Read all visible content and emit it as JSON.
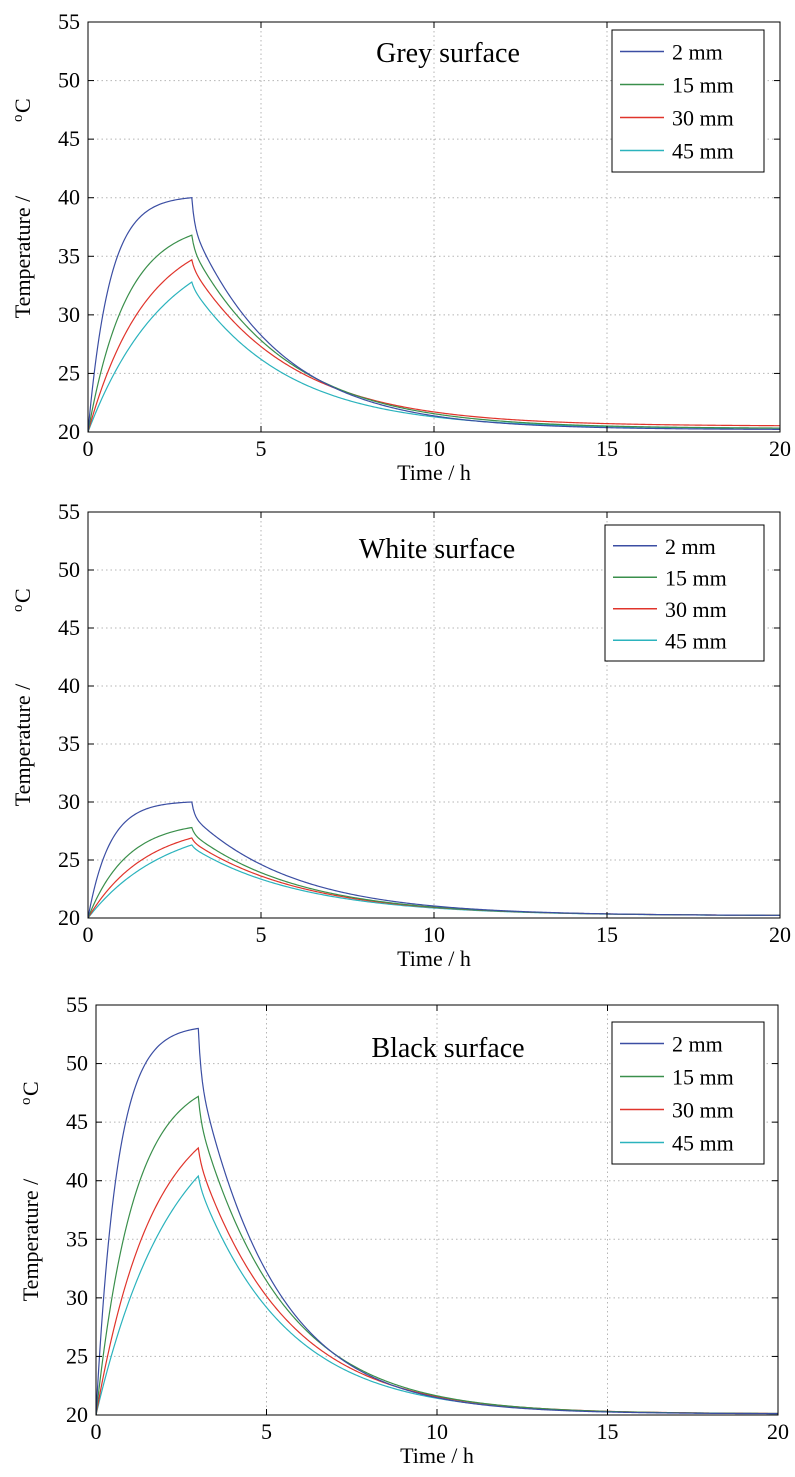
{
  "chart_data": [
    {
      "type": "line",
      "title": "Grey surface",
      "xlabel": "Time / h",
      "ylabel": "Temperature /",
      "ylabel_unit": "oC",
      "xlim": [
        0,
        20
      ],
      "ylim": [
        20,
        55
      ],
      "xticks": [
        0,
        5,
        10,
        15,
        20
      ],
      "yticks": [
        20,
        25,
        30,
        35,
        40,
        45,
        50,
        55
      ],
      "grid": true,
      "legend": "top-right",
      "series": [
        {
          "name": "2 mm",
          "color": "#3b4ea3",
          "peak": 40.0,
          "final": 20.2,
          "rise_k": 1.6,
          "decay_tau": 2.6
        },
        {
          "name": "15 mm",
          "color": "#3a8f4b",
          "peak": 36.8,
          "final": 20.3,
          "rise_k": 0.9,
          "decay_tau": 2.8
        },
        {
          "name": "30 mm",
          "color": "#e0342b",
          "peak": 34.7,
          "final": 20.5,
          "rise_k": 0.6,
          "decay_tau": 2.9
        },
        {
          "name": "45 mm",
          "color": "#2bb3bd",
          "peak": 32.8,
          "final": 20.3,
          "rise_k": 0.45,
          "decay_tau": 2.8
        }
      ]
    },
    {
      "type": "line",
      "title": "White surface",
      "xlabel": "Time / h",
      "ylabel": "Temperature /",
      "ylabel_unit": "oC",
      "xlim": [
        0,
        20
      ],
      "ylim": [
        20,
        55
      ],
      "xticks": [
        0,
        5,
        10,
        15,
        20
      ],
      "yticks": [
        20,
        25,
        30,
        35,
        40,
        45,
        50,
        55
      ],
      "grid": true,
      "legend": "top-right",
      "series": [
        {
          "name": "2 mm",
          "color": "#3b4ea3",
          "peak": 30.0,
          "final": 20.2,
          "rise_k": 1.6,
          "decay_tau": 3.0
        },
        {
          "name": "15 mm",
          "color": "#3a8f4b",
          "peak": 27.8,
          "final": 20.2,
          "rise_k": 0.9,
          "decay_tau": 3.1
        },
        {
          "name": "30 mm",
          "color": "#e0342b",
          "peak": 26.9,
          "final": 20.2,
          "rise_k": 0.6,
          "decay_tau": 3.2
        },
        {
          "name": "45 mm",
          "color": "#2bb3bd",
          "peak": 26.3,
          "final": 20.2,
          "rise_k": 0.45,
          "decay_tau": 3.2
        }
      ]
    },
    {
      "type": "line",
      "title": "Black surface",
      "xlabel": "Time / h",
      "ylabel": "Temperature /",
      "ylabel_unit": "oC",
      "xlim": [
        0,
        20
      ],
      "ylim": [
        20,
        55
      ],
      "xticks": [
        0,
        5,
        10,
        15,
        20
      ],
      "yticks": [
        20,
        25,
        30,
        35,
        40,
        45,
        50,
        55
      ],
      "grid": true,
      "legend": "top-right",
      "series": [
        {
          "name": "2 mm",
          "color": "#3b4ea3",
          "peak": 53.0,
          "final": 20.1,
          "rise_k": 1.6,
          "decay_tau": 2.3
        },
        {
          "name": "15 mm",
          "color": "#3a8f4b",
          "peak": 47.2,
          "final": 20.1,
          "rise_k": 0.9,
          "decay_tau": 2.5
        },
        {
          "name": "30 mm",
          "color": "#e0342b",
          "peak": 42.8,
          "final": 20.1,
          "rise_k": 0.6,
          "decay_tau": 2.6
        },
        {
          "name": "45 mm",
          "color": "#2bb3bd",
          "peak": 40.4,
          "final": 20.1,
          "rise_k": 0.45,
          "decay_tau": 2.6
        }
      ]
    }
  ]
}
